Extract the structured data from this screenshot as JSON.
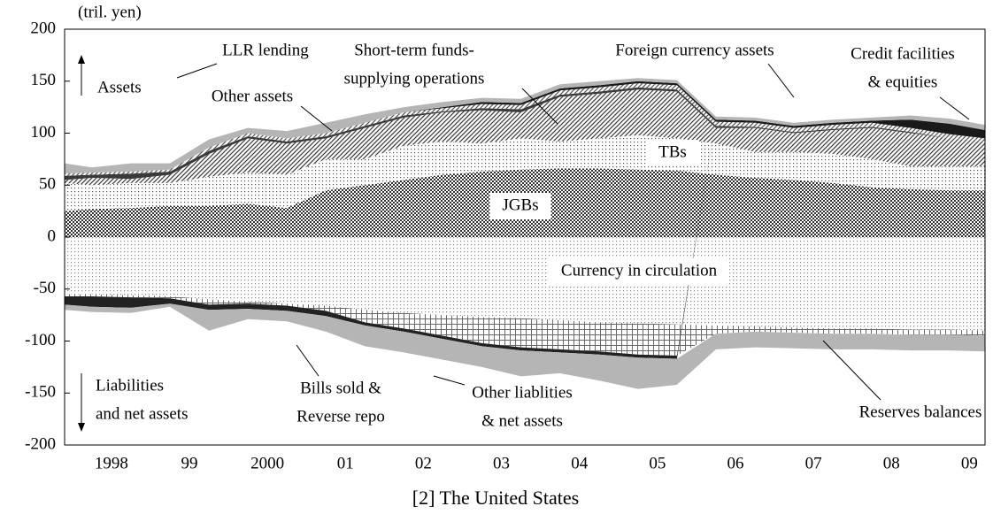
{
  "chart_data": {
    "type": "stacked-area",
    "title": "[2] The United States",
    "y_label": "(tril. yen)",
    "asset_label": [
      "Assets"
    ],
    "liability_label": [
      "Liabilities",
      "and net assets"
    ],
    "x": [
      1997.9,
      1998.25,
      1998.75,
      1999.25,
      1999.75,
      2000.25,
      2000.75,
      2001.25,
      2001.75,
      2002.25,
      2002.75,
      2003.25,
      2003.75,
      2004.25,
      2004.75,
      2005.25,
      2005.75,
      2006.25,
      2006.75,
      2007.25,
      2007.75,
      2008.25,
      2008.75,
      2009.25,
      2009.7
    ],
    "xlim": [
      1997.9,
      2009.7
    ],
    "xticks": [
      {
        "value": 1998.5,
        "label": "1998"
      },
      {
        "value": 1999.5,
        "label": "99"
      },
      {
        "value": 2000.5,
        "label": "2000"
      },
      {
        "value": 2001.5,
        "label": "01"
      },
      {
        "value": 2002.5,
        "label": "02"
      },
      {
        "value": 2003.5,
        "label": "03"
      },
      {
        "value": 2004.5,
        "label": "04"
      },
      {
        "value": 2005.5,
        "label": "05"
      },
      {
        "value": 2006.5,
        "label": "06"
      },
      {
        "value": 2007.5,
        "label": "07"
      },
      {
        "value": 2008.5,
        "label": "08"
      },
      {
        "value": 2009.5,
        "label": "09"
      }
    ],
    "ylim": [
      -200,
      200
    ],
    "yticks": [
      -200,
      -150,
      -100,
      -50,
      0,
      50,
      100,
      150,
      200
    ],
    "series": [
      {
        "label": [
          "JGBs"
        ],
        "color": "#2e2e2e",
        "pattern": "checker",
        "values": [
          25,
          27,
          28,
          30,
          30,
          32,
          28,
          45,
          50,
          55,
          60,
          63,
          65,
          66,
          66,
          65,
          64,
          60,
          57,
          55,
          52,
          48,
          46,
          45,
          45
        ]
      },
      {
        "label": [
          "TBs"
        ],
        "color": "#555555",
        "pattern": "dots",
        "values": [
          27,
          23,
          24,
          22,
          28,
          30,
          32,
          30,
          25,
          33,
          32,
          27,
          30,
          26,
          29,
          33,
          31,
          30,
          25,
          27,
          28,
          27,
          22,
          23,
          23
        ]
      },
      {
        "label": [
          "Short-term funds-",
          "supplying operations"
        ],
        "color": "#3a3a3a",
        "pattern": "hatch",
        "values": [
          3,
          7,
          4,
          8,
          22,
          33,
          30,
          20,
          30,
          27,
          28,
          32,
          25,
          43,
          43,
          44,
          45,
          15,
          23,
          18,
          23,
          30,
          32,
          27,
          24
        ]
      },
      {
        "label": [
          "LLR lending"
        ],
        "color": "#3a3a3a",
        "pattern": "solid",
        "values": [
          4,
          3,
          5,
          3,
          3,
          2,
          2,
          2,
          2,
          2,
          1,
          2,
          3,
          2,
          2,
          2,
          2,
          2,
          1,
          1,
          1,
          1,
          1,
          0,
          0
        ]
      },
      {
        "label": [
          "Foreign currency assets"
        ],
        "color": "#555555",
        "pattern": "hatch",
        "values": [
          2,
          2,
          2,
          2,
          3,
          3,
          3,
          3,
          3,
          3,
          3,
          4,
          4,
          4,
          4,
          4,
          4,
          4,
          4,
          4,
          4,
          4,
          4,
          4,
          3
        ]
      },
      {
        "label": [
          "Credit facilities",
          "& equities"
        ],
        "color": "#1a1a1a",
        "pattern": "solid",
        "values": [
          0,
          0,
          0,
          0,
          0,
          0,
          0,
          0,
          0,
          0,
          1,
          2,
          2,
          2,
          2,
          2,
          2,
          2,
          2,
          2,
          2,
          2,
          8,
          10,
          8
        ]
      },
      {
        "label": [
          "Other assets"
        ],
        "color": "#b5b5b5",
        "pattern": "solid",
        "values": [
          10,
          5,
          8,
          6,
          8,
          5,
          7,
          10,
          8,
          5,
          5,
          4,
          4,
          4,
          4,
          3,
          3,
          3,
          3,
          3,
          3,
          3,
          4,
          5,
          5
        ]
      },
      {
        "label": [
          "Currency in circulation"
        ],
        "color": "#8a8a8a",
        "pattern": "dots",
        "values": [
          -55,
          -55,
          -56,
          -57,
          -60,
          -62,
          -64,
          -66,
          -70,
          -73,
          -75,
          -77,
          -78,
          -80,
          -82,
          -83,
          -84,
          -85,
          -86,
          -87,
          -88,
          -88,
          -89,
          -89,
          -90
        ]
      },
      {
        "label": [
          "Reserves balances"
        ],
        "color": "#6a6a6a",
        "pattern": "grid",
        "values": [
          -2,
          -2,
          -2,
          -2,
          -5,
          -2,
          -2,
          -5,
          -12,
          -15,
          -20,
          -25,
          -28,
          -28,
          -28,
          -30,
          -30,
          -8,
          -5,
          -5,
          -5,
          -5,
          -5,
          -5,
          -5
        ]
      },
      {
        "label": [
          "Bills sold &",
          "Reverse repo"
        ],
        "color": "#222222",
        "pattern": "solid",
        "values": [
          -8,
          -10,
          -10,
          -5,
          -5,
          -5,
          -5,
          -5,
          -3,
          -3,
          -3,
          -3,
          -3,
          -3,
          -3,
          -3,
          -3,
          0,
          0,
          0,
          0,
          0,
          0,
          0,
          0
        ]
      },
      {
        "label": [
          "Other liablities",
          "& net assets"
        ],
        "color": "#b5b5b5",
        "pattern": "solid",
        "values": [
          -5,
          -5,
          -5,
          -3,
          -20,
          -10,
          -10,
          -15,
          -20,
          -20,
          -20,
          -20,
          -25,
          -20,
          -25,
          -30,
          -25,
          -15,
          -15,
          -15,
          -15,
          -15,
          -15,
          -15,
          -15
        ]
      }
    ]
  }
}
